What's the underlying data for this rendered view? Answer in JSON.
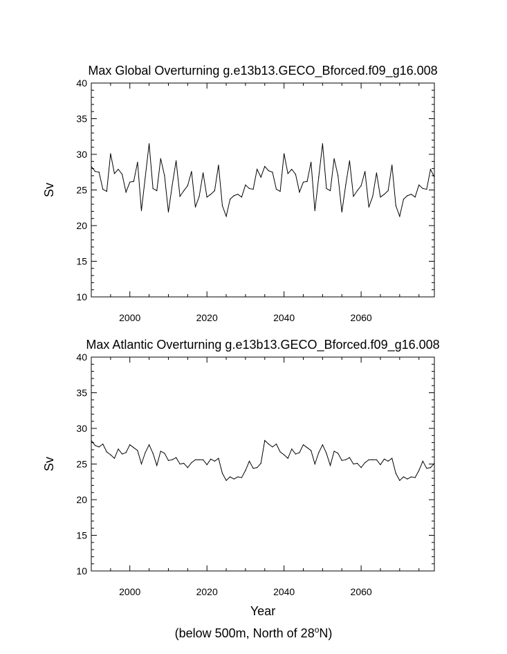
{
  "chart_data": [
    {
      "type": "line",
      "title": "Max Global Overturning g.e13b13.GECO_Bforced.f09_g16.008",
      "xlabel": "",
      "ylabel": "Sv",
      "xlim": [
        1990,
        2079
      ],
      "ylim": [
        10,
        40
      ],
      "xticks": [
        2000,
        2020,
        2040,
        2060
      ],
      "yticks": [
        10,
        15,
        20,
        25,
        30,
        35,
        40
      ],
      "grid": false,
      "series": [
        {
          "x": [
            1990,
            1991,
            1992,
            1993,
            1994,
            1995,
            1996,
            1997,
            1998,
            1999,
            2000,
            2001,
            2002,
            2003,
            2004,
            2005,
            2006,
            2007,
            2008,
            2009,
            2010,
            2011,
            2012,
            2013,
            2014,
            2015,
            2016,
            2017,
            2018,
            2019,
            2020,
            2021,
            2022,
            2023,
            2024,
            2025,
            2026,
            2027,
            2028,
            2029,
            2030,
            2031,
            2032,
            2033,
            2034,
            2035,
            2036,
            2037,
            2038,
            2039,
            2040,
            2041,
            2042,
            2043,
            2044,
            2045,
            2046,
            2047,
            2048,
            2049,
            2050,
            2051,
            2052,
            2053,
            2054,
            2055,
            2056,
            2057,
            2058,
            2059,
            2060,
            2061,
            2062,
            2063,
            2064,
            2065,
            2066,
            2067,
            2068,
            2069,
            2070,
            2071,
            2072,
            2073,
            2074,
            2075,
            2076,
            2077,
            2078,
            2079
          ],
          "values": [
            28.3,
            27.6,
            27.5,
            25.1,
            24.8,
            30.1,
            27.3,
            27.9,
            27.2,
            24.7,
            26.1,
            26.2,
            28.9,
            22.1,
            26.8,
            31.5,
            25.2,
            24.9,
            29.4,
            27.0,
            21.9,
            25.7,
            29.1,
            24.1,
            24.9,
            25.6,
            27.6,
            22.6,
            24.1,
            27.4,
            24.0,
            24.4,
            24.9,
            28.5,
            22.8,
            21.3,
            23.7,
            24.2,
            24.4,
            24.0,
            25.7,
            25.2,
            25.1,
            27.9,
            26.8,
            28.3,
            27.7,
            27.5,
            25.1,
            24.8,
            30.1,
            27.3,
            27.9,
            27.2,
            24.7,
            26.1,
            26.2,
            28.9,
            22.1,
            26.8,
            31.5,
            25.2,
            24.9,
            29.4,
            27.0,
            21.9,
            25.7,
            29.1,
            24.1,
            24.9,
            25.6,
            27.6,
            22.6,
            24.1,
            27.4,
            24.0,
            24.4,
            24.9,
            28.5,
            22.8,
            21.3,
            23.7,
            24.2,
            24.4,
            24.0,
            25.7,
            25.2,
            25.1,
            27.9,
            26.8
          ]
        }
      ]
    },
    {
      "type": "line",
      "title": "Max Atlantic Overturning g.e13b13.GECO_Bforced.f09_g16.008",
      "xlabel": "Year",
      "ylabel": "Sv",
      "xlim": [
        1990,
        2079
      ],
      "ylim": [
        10,
        40
      ],
      "xticks": [
        2000,
        2020,
        2040,
        2060
      ],
      "yticks": [
        10,
        15,
        20,
        25,
        30,
        35,
        40
      ],
      "grid": false,
      "series": [
        {
          "x": [
            1990,
            1991,
            1992,
            1993,
            1994,
            1995,
            1996,
            1997,
            1998,
            1999,
            2000,
            2001,
            2002,
            2003,
            2004,
            2005,
            2006,
            2007,
            2008,
            2009,
            2010,
            2011,
            2012,
            2013,
            2014,
            2015,
            2016,
            2017,
            2018,
            2019,
            2020,
            2021,
            2022,
            2023,
            2024,
            2025,
            2026,
            2027,
            2028,
            2029,
            2030,
            2031,
            2032,
            2033,
            2034,
            2035,
            2036,
            2037,
            2038,
            2039,
            2040,
            2041,
            2042,
            2043,
            2044,
            2045,
            2046,
            2047,
            2048,
            2049,
            2050,
            2051,
            2052,
            2053,
            2054,
            2055,
            2056,
            2057,
            2058,
            2059,
            2060,
            2061,
            2062,
            2063,
            2064,
            2065,
            2066,
            2067,
            2068,
            2069,
            2070,
            2071,
            2072,
            2073,
            2074,
            2075,
            2076,
            2077,
            2078,
            2079
          ],
          "values": [
            28.3,
            27.6,
            27.4,
            27.8,
            26.7,
            26.3,
            25.8,
            27.1,
            26.4,
            26.6,
            27.7,
            27.3,
            26.9,
            25.0,
            26.6,
            27.7,
            26.5,
            24.8,
            26.8,
            26.5,
            25.5,
            25.6,
            25.9,
            25.0,
            25.1,
            24.5,
            25.2,
            25.6,
            25.6,
            25.6,
            24.9,
            25.7,
            25.4,
            25.8,
            23.7,
            22.7,
            23.2,
            22.9,
            23.2,
            23.1,
            24.1,
            25.4,
            24.4,
            24.5,
            25.1,
            28.3,
            27.8,
            27.4,
            27.8,
            26.7,
            26.3,
            25.8,
            27.1,
            26.4,
            26.6,
            27.7,
            27.3,
            26.9,
            25.0,
            26.6,
            27.7,
            26.5,
            24.8,
            26.8,
            26.5,
            25.5,
            25.6,
            25.9,
            25.0,
            25.1,
            24.5,
            25.2,
            25.6,
            25.6,
            25.6,
            24.9,
            25.7,
            25.4,
            25.8,
            23.7,
            22.7,
            23.2,
            22.9,
            23.2,
            23.1,
            24.1,
            25.4,
            24.4,
            24.5,
            25.1
          ]
        }
      ]
    }
  ],
  "footnote": {
    "prefix": "(below 500m, North of 28",
    "superscript": "o",
    "suffix": "N)"
  }
}
